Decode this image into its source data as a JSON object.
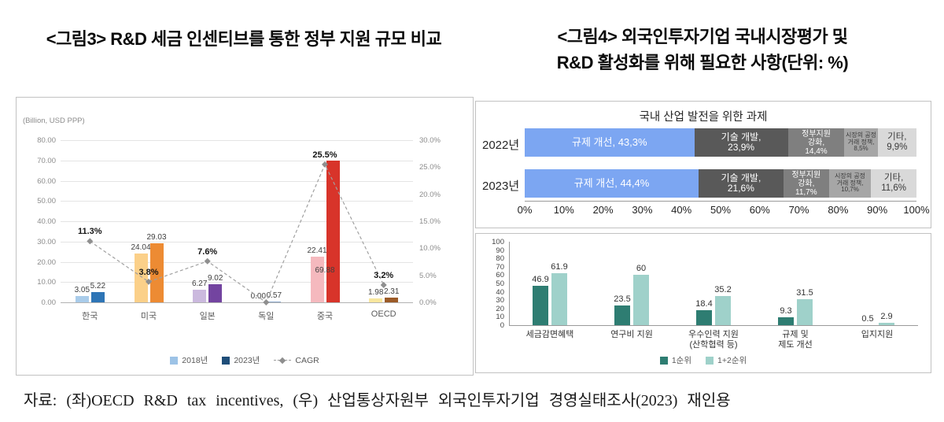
{
  "page": {
    "left_title": "<그림3> R&D 세금 인센티브를 통한 정부 지원 규모 비교",
    "right_title_line1": "<그림4> 외국인투자기업 국내시장평가 및",
    "right_title_line2": "R&D 활성화를 위해 필요한 사항(단위: %)",
    "caption": "자료: (좌)OECD R&D tax incentives, (우) 산업통상자원부 외국인투자기업 경영실태조사(2023) 재인용"
  },
  "chart_data": [
    {
      "id": "rnd-tax-support",
      "type": "bar",
      "unit_label": "(Billion, USD PPP)",
      "categories": [
        "한국",
        "미국",
        "일본",
        "독일",
        "중국",
        "OECD"
      ],
      "series": [
        {
          "name": "2018년",
          "values": [
            3.05,
            24.04,
            6.27,
            0.0,
            22.41,
            1.98
          ],
          "labels": [
            "3.05",
            "24.04",
            "6.27",
            "0.00",
            "22.41",
            "1.98"
          ],
          "colors": [
            "#A9CCEA",
            "#FBD089",
            "#CBB9DE",
            "#C9D6E4",
            "#F5B9BE",
            "#F8E79E"
          ]
        },
        {
          "name": "2023년",
          "values": [
            5.22,
            29.03,
            9.02,
            0.57,
            69.88,
            2.31
          ],
          "labels": [
            "5.22",
            "29.03",
            "9.02",
            "0.57",
            "69.88",
            "2.31"
          ],
          "colors": [
            "#2E75B6",
            "#ED8B33",
            "#7344A0",
            "#8FAACC",
            "#D8342A",
            "#9C5B28"
          ]
        }
      ],
      "cagr": {
        "name": "CAGR",
        "values": [
          11.3,
          3.8,
          7.6,
          0.0,
          25.5,
          3.2
        ],
        "labels": [
          "11.3%",
          "3.8%",
          "7.6%",
          "",
          "25.5%",
          "3.2%"
        ]
      },
      "axis_left_max": 80,
      "axis_right_max": 30,
      "y_ticks_left": [
        "0.00",
        "10.00",
        "20.00",
        "30.00",
        "40.00",
        "50.00",
        "60.00",
        "70.00",
        "80.00"
      ],
      "y_ticks_right": [
        "0.0%",
        "5.0%",
        "10.0%",
        "15.0%",
        "20.0%",
        "25.0%",
        "30.0%"
      ],
      "legend": [
        {
          "label": "2018년",
          "color": "#9DC3E6"
        },
        {
          "label": "2023년",
          "color": "#1F4E79"
        },
        {
          "label": "CAGR",
          "type": "line"
        }
      ]
    },
    {
      "id": "domestic-industry-tasks",
      "type": "stacked-bar-horizontal",
      "title": "국내 산업 발전을 위한 과제",
      "x_ticks": [
        "0%",
        "10%",
        "20%",
        "30%",
        "40%",
        "50%",
        "60%",
        "70%",
        "80%",
        "90%",
        "100%"
      ],
      "segment_colors": [
        "#7CA6F2",
        "#595959",
        "#7F7F7F",
        "#A6A6A6",
        "#D9D9D9"
      ],
      "segment_text_colors": [
        "#ffffff",
        "#ffffff",
        "#ffffff",
        "#3b3b3b",
        "#3b3b3b"
      ],
      "rows": [
        {
          "label": "2022년",
          "values": [
            43.3,
            23.9,
            14.4,
            8.5,
            9.9
          ],
          "segment_labels": [
            "규제 개선, 43,3%",
            "기술 개발,\n23,9%",
            "정부지원\n강화,\n14,4%",
            "시장의 공정\n거래 정책,\n8,5%",
            "기타,\n9,9%"
          ]
        },
        {
          "label": "2023년",
          "values": [
            44.4,
            21.6,
            11.7,
            10.7,
            11.6
          ],
          "segment_labels": [
            "규제 개선, 44,4%",
            "기술 개발,\n21,6%",
            "정부지원\n강화,\n11,7%",
            "시장의 공정\n거래 정책,\n10,7%",
            "기타,\n11,6%"
          ]
        }
      ]
    },
    {
      "id": "rnd-activation-needs",
      "type": "bar",
      "categories": [
        "세금감면혜택",
        "연구비 지원",
        "우수인력 지원\n(산학협력 등)",
        "규제 및\n제도 개선",
        "입지지원"
      ],
      "series": [
        {
          "name": "1순위",
          "color": "#2E7D72",
          "values": [
            46.9,
            23.5,
            18.4,
            9.3,
            0.5
          ],
          "labels": [
            "46.9",
            "23.5",
            "18.4",
            "9.3",
            "0.5"
          ]
        },
        {
          "name": "1+2순위",
          "color": "#9FD1CA",
          "values": [
            61.9,
            60,
            35.2,
            31.5,
            2.9
          ],
          "labels": [
            "61.9",
            "60",
            "35.2",
            "31.5",
            "2.9"
          ]
        }
      ],
      "ylim": [
        0,
        100
      ],
      "y_ticks": [
        "0",
        "10",
        "20",
        "30",
        "40",
        "50",
        "60",
        "70",
        "80",
        "90",
        "100"
      ]
    }
  ]
}
